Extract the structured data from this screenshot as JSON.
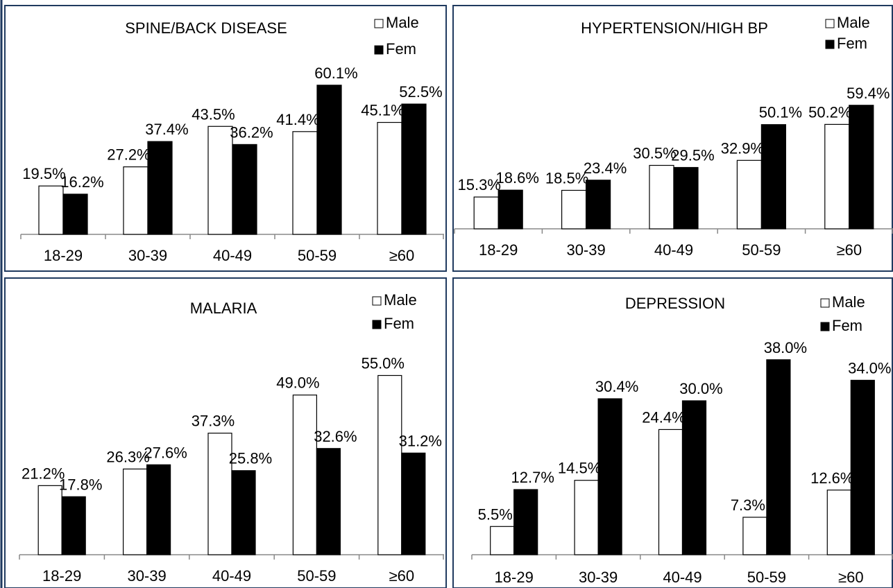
{
  "chart_data": [
    {
      "type": "bar",
      "title": "SPINE/BACK DISEASE",
      "categories": [
        "18-29",
        "30-39",
        "40-49",
        "50-59",
        "≥60"
      ],
      "series": [
        {
          "name": "Male",
          "values": [
            19.5,
            27.2,
            43.5,
            41.4,
            45.1
          ],
          "labels": [
            "19.5%",
            "27.2%",
            "43.5%",
            "41.4%",
            "45.1%"
          ],
          "color": "#ffffff"
        },
        {
          "name": "Fem",
          "values": [
            16.2,
            37.4,
            36.2,
            60.1,
            52.5
          ],
          "labels": [
            "16.2%",
            "37.4%",
            "36.2%",
            "60.1%",
            "52.5%"
          ],
          "color": "#000000"
        }
      ],
      "ylim": [
        0,
        80
      ],
      "grid": false,
      "legend": "top-right"
    },
    {
      "type": "bar",
      "title": "HYPERTENSION/HIGH  BP",
      "categories": [
        "18-29",
        "30-39",
        "40-49",
        "50-59",
        "≥60"
      ],
      "series": [
        {
          "name": "Male",
          "values": [
            15.3,
            18.5,
            30.5,
            32.9,
            50.2
          ],
          "labels": [
            "15.3%",
            "18.5%",
            "30.5%",
            "32.9%",
            "50.2%"
          ],
          "color": "#ffffff"
        },
        {
          "name": "Fem",
          "values": [
            18.6,
            23.4,
            29.5,
            50.1,
            59.4
          ],
          "labels": [
            "18.6%",
            "23.4%",
            "29.5%",
            "50.1%",
            "59.4%"
          ],
          "color": "#000000"
        }
      ],
      "ylim": [
        0,
        80
      ],
      "grid": false,
      "legend": "top-right"
    },
    {
      "type": "bar",
      "title": "MALARIA",
      "categories": [
        "18-29",
        "30-39",
        "40-49",
        "50-59",
        "≥60"
      ],
      "series": [
        {
          "name": "Male",
          "values": [
            21.2,
            26.3,
            37.3,
            49.0,
            55.0
          ],
          "labels": [
            "21.2%",
            "26.3%",
            "37.3%",
            "49.0%",
            "55.0%"
          ],
          "color": "#ffffff"
        },
        {
          "name": "Fem",
          "values": [
            17.8,
            27.6,
            25.8,
            32.6,
            31.2
          ],
          "labels": [
            "17.8%",
            "27.6%",
            "25.8%",
            "32.6%",
            "31.2%"
          ],
          "color": "#000000"
        }
      ],
      "ylim": [
        0,
        65
      ],
      "grid": false,
      "legend": "top-right"
    },
    {
      "type": "bar",
      "title": "DEPRESSION",
      "categories": [
        "18-29",
        "30-39",
        "40-49",
        "50-59",
        "≥60"
      ],
      "series": [
        {
          "name": "Male",
          "values": [
            5.5,
            14.5,
            24.4,
            7.3,
            12.6
          ],
          "labels": [
            "5.5%",
            "14.5%",
            "24.4%",
            "7.3%",
            "12.6%"
          ],
          "color": "#ffffff"
        },
        {
          "name": "Fem",
          "values": [
            12.7,
            30.4,
            30.0,
            38.0,
            34.0
          ],
          "labels": [
            "12.7%",
            "30.4%",
            "30.0%",
            "38.0%",
            "34.0%"
          ],
          "color": "#000000"
        }
      ],
      "ylim": [
        0,
        45
      ],
      "grid": false,
      "legend": "top-right"
    }
  ]
}
